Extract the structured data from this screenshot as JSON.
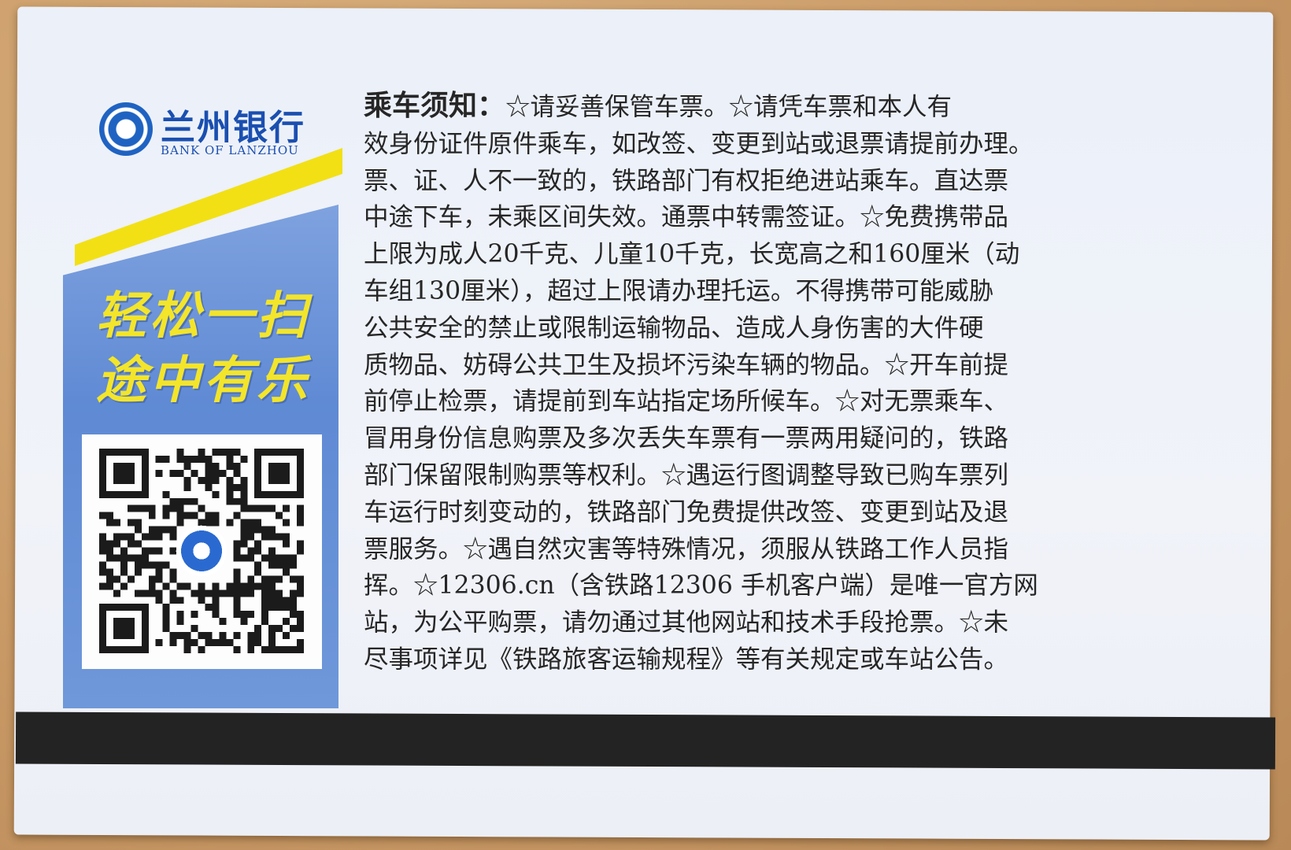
{
  "bank": {
    "name_cn": "兰州银行",
    "name_en": "BANK OF LANZHOU",
    "brand_blue": "#1a4fb0",
    "accent_yellow": "#f2e015"
  },
  "ad": {
    "slogan_line1": "轻松一扫",
    "slogan_line2": "途中有乐",
    "qr_icon": "qr-code-icon"
  },
  "notice": {
    "title": "乘车须知：",
    "lines": [
      "☆请妥善保管车票。☆请凭车票和本人有",
      "效身份证件原件乘车，如改签、变更到站或退票请提前办理。",
      "票、证、人不一致的，铁路部门有权拒绝进站乘车。直达票",
      "中途下车，未乘区间失效。通票中转需签证。☆免费携带品",
      "上限为成人20千克、儿童10千克，长宽高之和160厘米（动",
      "车组130厘米），超过上限请办理托运。不得携带可能威胁",
      "公共安全的禁止或限制运输物品、造成人身伤害的大件硬",
      "质物品、妨碍公共卫生及损坏污染车辆的物品。☆开车前提",
      "前停止检票，请提前到车站指定场所候车。☆对无票乘车、",
      "冒用身份信息购票及多次丢失车票有一票两用疑问的，铁路",
      "部门保留限制购票等权利。☆遇运行图调整导致已购车票列",
      "车运行时刻变动的，铁路部门免费提供改签、变更到站及退",
      "票服务。☆遇自然灾害等特殊情况，须服从铁路工作人员指",
      "挥。☆12306.cn（含铁路12306 手机客户端）是唯一官方网",
      "站，为公平购票，请勿通过其他网站和技术手段抢票。☆未",
      "尽事项详见《铁路旅客运输规程》等有关规定或车站公告。"
    ]
  }
}
